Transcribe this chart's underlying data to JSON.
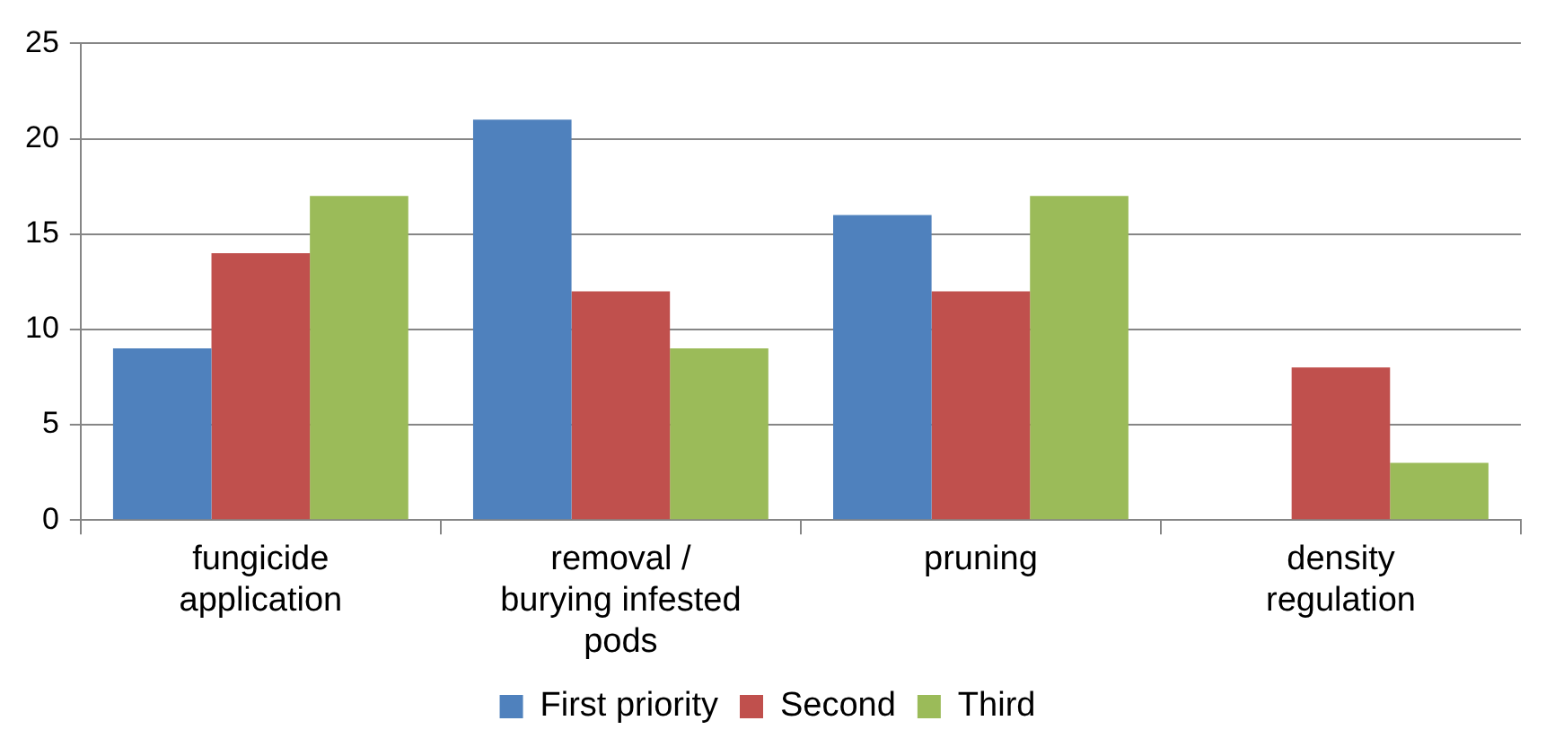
{
  "chart_data": {
    "type": "bar",
    "categories": [
      "fungicide application",
      "removal / burying infested pods",
      "pruning",
      "density regulation"
    ],
    "series": [
      {
        "name": "First priority",
        "color": "#4f81bd",
        "values": [
          9,
          21,
          16,
          0
        ]
      },
      {
        "name": "Second",
        "color": "#c0504d",
        "values": [
          14,
          12,
          12,
          8
        ]
      },
      {
        "name": "Third",
        "color": "#9bbb59",
        "values": [
          17,
          9,
          17,
          3
        ]
      }
    ],
    "ylim": [
      0,
      25
    ],
    "yticks": [
      0,
      5,
      10,
      15,
      20,
      25
    ],
    "grid": "y",
    "legend": "bottom"
  }
}
